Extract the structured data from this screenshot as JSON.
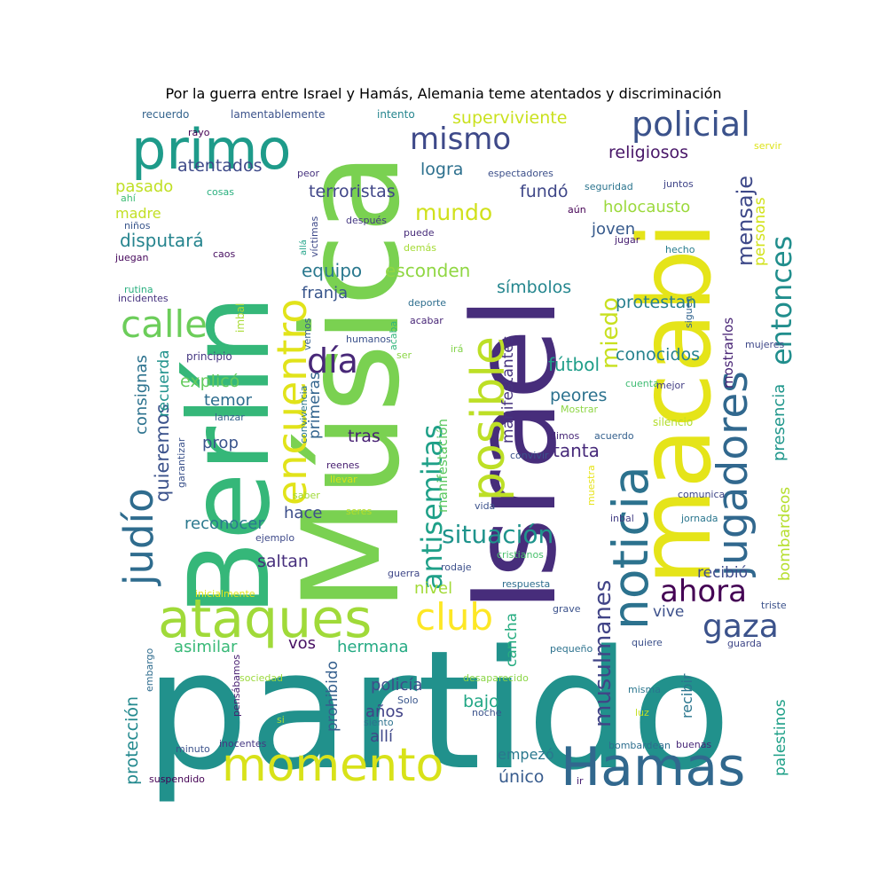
{
  "title": "Por la guerra entre Israel y Hamás, Alemania teme atentados y discriminación",
  "words": [
    {
      "text": "partido",
      "color": "#21918c"
    },
    {
      "text": "Israel",
      "color": "#472d7b"
    },
    {
      "text": "Música",
      "color": "#7ad151"
    },
    {
      "text": "Berlín",
      "color": "#35b779"
    },
    {
      "text": "macabi",
      "color": "#e5e419"
    },
    {
      "text": "momento",
      "color": "#d8e219"
    },
    {
      "text": "Hamas",
      "color": "#31688e"
    },
    {
      "text": "ataques",
      "color": "#a0da39"
    },
    {
      "text": "primo",
      "color": "#1e9b8a"
    },
    {
      "text": "noticia",
      "color": "#2c728e"
    },
    {
      "text": "jugadores",
      "color": "#31688e"
    },
    {
      "text": "posible",
      "color": "#bddf26"
    },
    {
      "text": "encuentro",
      "color": "#e1e31a"
    },
    {
      "text": "policial",
      "color": "#3b528b"
    },
    {
      "text": "judío",
      "color": "#2f6c8e"
    },
    {
      "text": "calle",
      "color": "#6ccd5a"
    },
    {
      "text": "antisemitas",
      "color": "#1fa088"
    },
    {
      "text": "club",
      "color": "#fde725"
    },
    {
      "text": "ahora",
      "color": "#440154"
    },
    {
      "text": "gaza",
      "color": "#3b528b"
    },
    {
      "text": "entonces",
      "color": "#218e8d"
    },
    {
      "text": "mensaje",
      "color": "#3e4989"
    },
    {
      "text": "mismo",
      "color": "#3e4989"
    },
    {
      "text": "día",
      "color": "#482878"
    },
    {
      "text": "miedo",
      "color": "#c8e020"
    },
    {
      "text": "situación",
      "color": "#1f948c"
    },
    {
      "text": "musulmanes",
      "color": "#414487"
    },
    {
      "text": "mundo",
      "color": "#d0e11c"
    },
    {
      "text": "equipo",
      "color": "#2a788e"
    },
    {
      "text": "esconden",
      "color": "#90d743"
    },
    {
      "text": "franja",
      "color": "#39568c"
    },
    {
      "text": "símbolos",
      "color": "#24868e"
    },
    {
      "text": "fútbol",
      "color": "#1f9e89"
    },
    {
      "text": "conocidos",
      "color": "#26828e"
    },
    {
      "text": "protestan",
      "color": "#277f8e"
    },
    {
      "text": "peores",
      "color": "#2c728e"
    },
    {
      "text": "tanta",
      "color": "#472a7a"
    },
    {
      "text": "joven",
      "color": "#375a8c"
    },
    {
      "text": "holocausto",
      "color": "#9bd93c"
    },
    {
      "text": "fundó",
      "color": "#3f4788"
    },
    {
      "text": "logra",
      "color": "#2d708e"
    },
    {
      "text": "religiosos",
      "color": "#481668"
    },
    {
      "text": "superviviente",
      "color": "#cae11f"
    },
    {
      "text": "terroristas",
      "color": "#404688"
    },
    {
      "text": "atentados",
      "color": "#3e4a89"
    },
    {
      "text": "disputará",
      "color": "#25848e"
    },
    {
      "text": "pasado",
      "color": "#c0df25"
    },
    {
      "text": "madre",
      "color": "#c2df23"
    },
    {
      "text": "personas",
      "color": "#d2e21b"
    },
    {
      "text": "presencia",
      "color": "#1f968b"
    },
    {
      "text": "bombardeos",
      "color": "#b5de2b"
    },
    {
      "text": "palestinos",
      "color": "#1fa088"
    },
    {
      "text": "mostrarlos",
      "color": "#482475"
    },
    {
      "text": "consignas",
      "color": "#2c728e"
    },
    {
      "text": "quieremos",
      "color": "#3b528b"
    },
    {
      "text": "recuerda",
      "color": "#20928c"
    },
    {
      "text": "explicó",
      "color": "#65cb5e"
    },
    {
      "text": "temor",
      "color": "#2e6d8e"
    },
    {
      "text": "prop",
      "color": "#3a548c"
    },
    {
      "text": "tras",
      "color": "#482173"
    },
    {
      "text": "primeras",
      "color": "#32648e"
    },
    {
      "text": "manifestantes",
      "color": "#46337f"
    },
    {
      "text": "manifestación",
      "color": "#5ec962"
    },
    {
      "text": "reconocer",
      "color": "#2a788e"
    },
    {
      "text": "hace",
      "color": "#3d4e8a"
    },
    {
      "text": "saltan",
      "color": "#472f7d"
    },
    {
      "text": "nivel",
      "color": "#a2da37"
    },
    {
      "text": "recibió",
      "color": "#3e4c8a"
    },
    {
      "text": "vive",
      "color": "#3c508b"
    },
    {
      "text": "cancha",
      "color": "#27ad81"
    },
    {
      "text": "asimilar",
      "color": "#38b977"
    },
    {
      "text": "vos",
      "color": "#471063"
    },
    {
      "text": "hermana",
      "color": "#24aa83"
    },
    {
      "text": "protección",
      "color": "#23898e"
    },
    {
      "text": "prohibido",
      "color": "#355f8d"
    },
    {
      "text": "policía",
      "color": "#3d4d8a"
    },
    {
      "text": "años",
      "color": "#414287"
    },
    {
      "text": "allí",
      "color": "#3f4889"
    },
    {
      "text": "bajo",
      "color": "#22a785"
    },
    {
      "text": "empezó",
      "color": "#2a788e"
    },
    {
      "text": "único",
      "color": "#375b8d"
    },
    {
      "text": "recibir",
      "color": "#2a768e"
    },
    {
      "text": "recuerdo",
      "color": "#33638d"
    },
    {
      "text": "lamentablemente",
      "color": "#3b528b"
    },
    {
      "text": "intento",
      "color": "#25858e"
    },
    {
      "text": "rayo",
      "color": "#440154"
    },
    {
      "text": "peor",
      "color": "#46327e"
    },
    {
      "text": "cosas",
      "color": "#2ab07f"
    },
    {
      "text": "ahí",
      "color": "#3dbc74"
    },
    {
      "text": "niños",
      "color": "#39568c"
    },
    {
      "text": "juegan",
      "color": "#46085c"
    },
    {
      "text": "caos",
      "color": "#470e61"
    },
    {
      "text": "rutina",
      "color": "#29af7f"
    },
    {
      "text": "incidentes",
      "color": "#46337f"
    },
    {
      "text": "imbal",
      "color": "#a8db34"
    },
    {
      "text": "víctimas",
      "color": "#3e4989"
    },
    {
      "text": "allá",
      "color": "#1fa287"
    },
    {
      "text": "después",
      "color": "#453882"
    },
    {
      "text": "puede",
      "color": "#472c7a"
    },
    {
      "text": "demás",
      "color": "#a5db36"
    },
    {
      "text": "aún",
      "color": "#440154"
    },
    {
      "text": "espectadores",
      "color": "#3c4f8a"
    },
    {
      "text": "seguridad",
      "color": "#2b748e"
    },
    {
      "text": "juntos",
      "color": "#404588"
    },
    {
      "text": "servir",
      "color": "#dde318"
    },
    {
      "text": "jugar",
      "color": "#482071"
    },
    {
      "text": "hecho",
      "color": "#287c8e"
    },
    {
      "text": "deporte",
      "color": "#2e6e8e"
    },
    {
      "text": "acabar",
      "color": "#482677"
    },
    {
      "text": "acaba",
      "color": "#31b57b"
    },
    {
      "text": "vemos",
      "color": "#34608d"
    },
    {
      "text": "humanos",
      "color": "#3b518b"
    },
    {
      "text": "ser",
      "color": "#8bd646"
    },
    {
      "text": "irá",
      "color": "#84d44b"
    },
    {
      "text": "siguen",
      "color": "#32648e"
    },
    {
      "text": "mujeres",
      "color": "#3f4889"
    },
    {
      "text": "principio",
      "color": "#453781"
    },
    {
      "text": "cuenta",
      "color": "#3fbc73"
    },
    {
      "text": "Mostrar",
      "color": "#8ed645"
    },
    {
      "text": "mejor",
      "color": "#433e85"
    },
    {
      "text": "silencio",
      "color": "#b2dd2d"
    },
    {
      "text": "lanzar",
      "color": "#34618d"
    },
    {
      "text": "garantizar",
      "color": "#3b528b"
    },
    {
      "text": "convivencia",
      "color": "#2a788e"
    },
    {
      "text": "dimos",
      "color": "#482878"
    },
    {
      "text": "acuerdo",
      "color": "#34608d"
    },
    {
      "text": "convivir",
      "color": "#3b528b"
    },
    {
      "text": "reenes",
      "color": "#482071"
    },
    {
      "text": "llevar",
      "color": "#d5e21a"
    },
    {
      "text": "saber",
      "color": "#a0da39"
    },
    {
      "text": "muestra",
      "color": "#e7e419"
    },
    {
      "text": "comunica",
      "color": "#3f4788"
    },
    {
      "text": "seres",
      "color": "#b8de29"
    },
    {
      "text": "vida",
      "color": "#3b528b"
    },
    {
      "text": "inbal",
      "color": "#433e85"
    },
    {
      "text": "jornada",
      "color": "#2a768e"
    },
    {
      "text": "ejemplo",
      "color": "#3e4989"
    },
    {
      "text": "rodaje",
      "color": "#3c4f8a"
    },
    {
      "text": "cristianos",
      "color": "#4ac16d"
    },
    {
      "text": "guerra",
      "color": "#3f4788"
    },
    {
      "text": "respuesta",
      "color": "#2e6e8e"
    },
    {
      "text": "inicialmente",
      "color": "#e5e419"
    },
    {
      "text": "grave",
      "color": "#3b528b"
    },
    {
      "text": "triste",
      "color": "#3b528b"
    },
    {
      "text": "guarda",
      "color": "#3f4788"
    },
    {
      "text": "pequeño",
      "color": "#2c728e"
    },
    {
      "text": "quiere",
      "color": "#3c508b"
    },
    {
      "text": "embargo",
      "color": "#2f6c8e"
    },
    {
      "text": "pensábamos",
      "color": "#482071"
    },
    {
      "text": "sociedad",
      "color": "#9bd93c"
    },
    {
      "text": "desaparecido",
      "color": "#8bd646"
    },
    {
      "text": "misma",
      "color": "#2a768e"
    },
    {
      "text": "si",
      "color": "#a5db36"
    },
    {
      "text": "Solo",
      "color": "#39568c"
    },
    {
      "text": "siento",
      "color": "#2c728e"
    },
    {
      "text": "noche",
      "color": "#3b528b"
    },
    {
      "text": "luz",
      "color": "#c2df23"
    },
    {
      "text": "minuto",
      "color": "#3b528b"
    },
    {
      "text": "inocentes",
      "color": "#453882"
    },
    {
      "text": "bombardean",
      "color": "#2e6e8e"
    },
    {
      "text": "buenas",
      "color": "#482878"
    },
    {
      "text": "suspendido",
      "color": "#440154"
    },
    {
      "text": "ir",
      "color": "#482173"
    }
  ]
}
